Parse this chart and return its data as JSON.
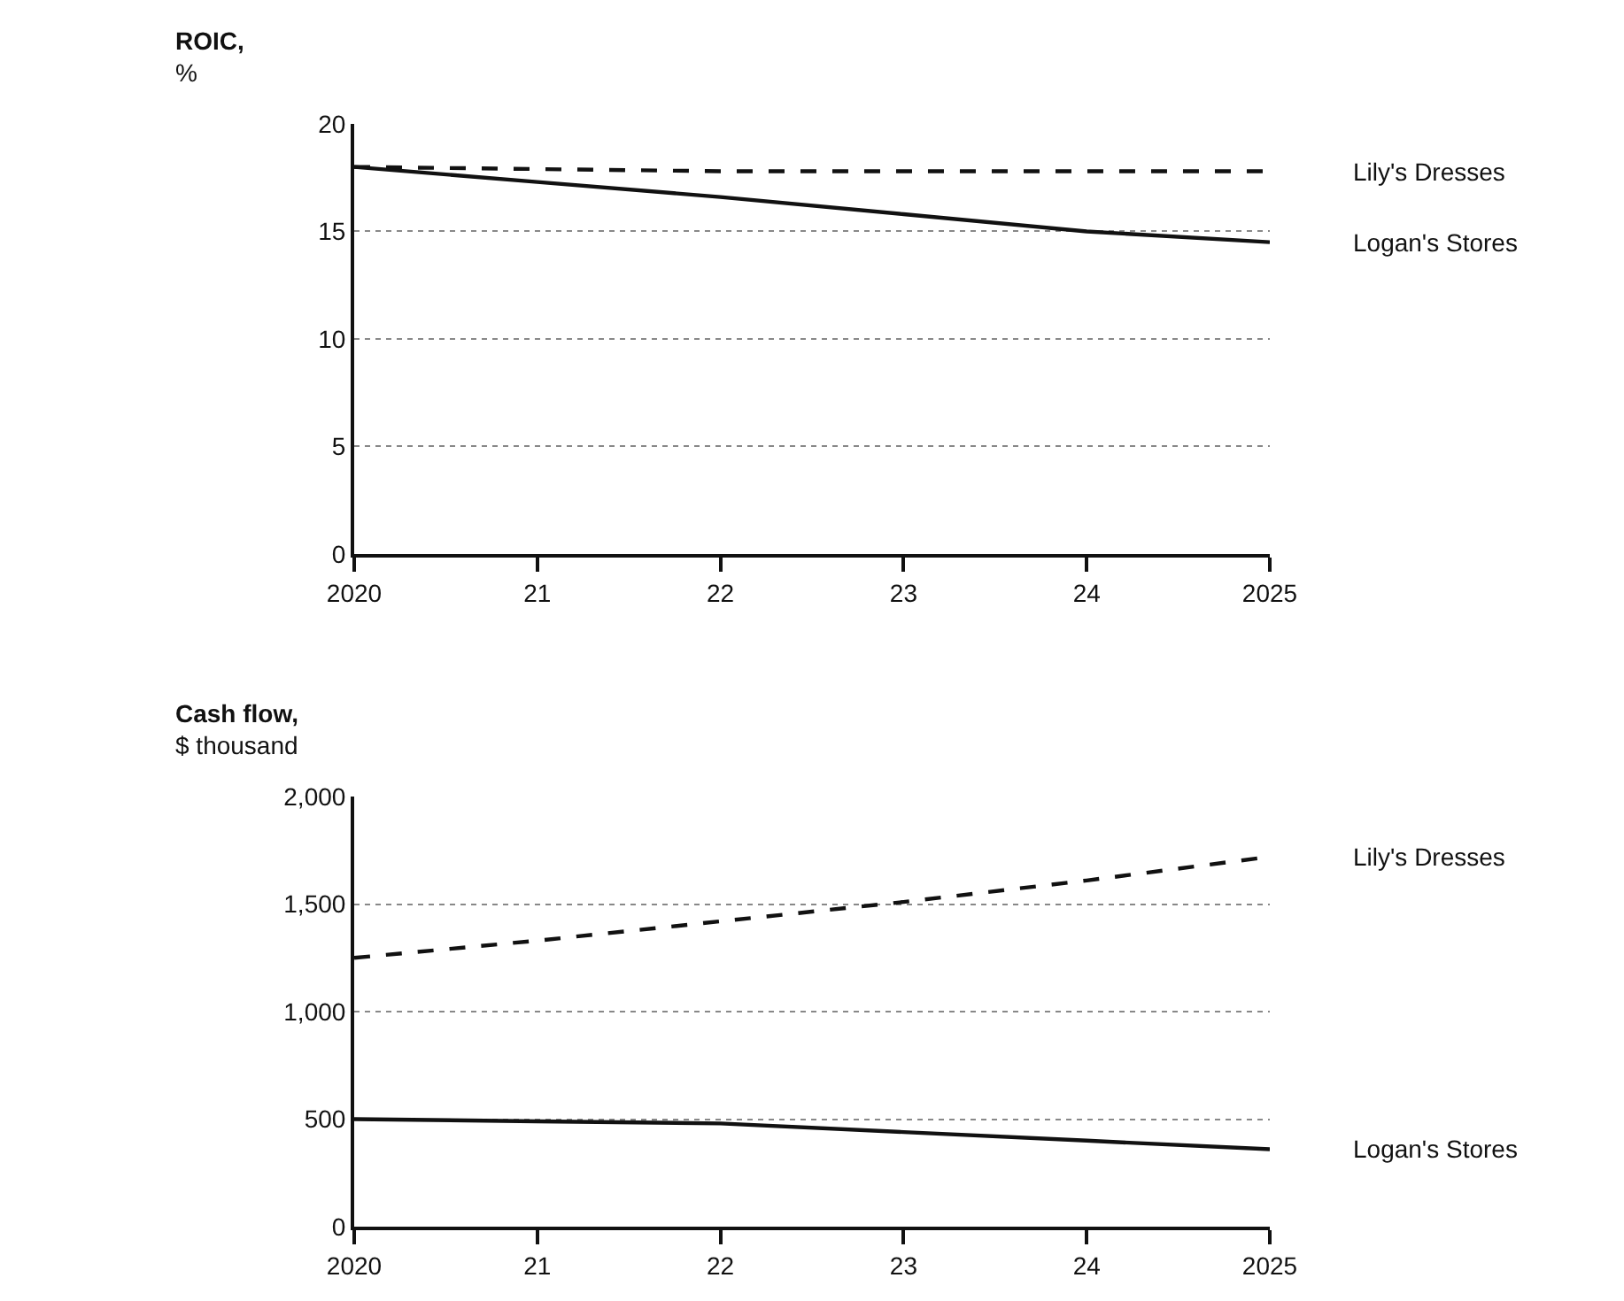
{
  "chart_data": [
    {
      "type": "line",
      "ylabel": "ROIC,\n%",
      "x": [
        2020,
        2021,
        2022,
        2023,
        2024,
        2025
      ],
      "xlim": [
        2020,
        2025
      ],
      "xticks": [
        {
          "value": 2020,
          "label": "2020"
        },
        {
          "value": 2021,
          "label": "21"
        },
        {
          "value": 2022,
          "label": "22"
        },
        {
          "value": 2023,
          "label": "23"
        },
        {
          "value": 2024,
          "label": "24"
        },
        {
          "value": 2025,
          "label": "2025"
        }
      ],
      "ylim": [
        0,
        20
      ],
      "yticks": [
        0,
        5,
        10,
        15,
        20
      ],
      "grid": "y",
      "marker": "none",
      "series": [
        {
          "name": "Lily's Dresses",
          "color": "#111111",
          "line_style": "dashed",
          "values": [
            18,
            17.9,
            17.8,
            17.8,
            17.8,
            17.8
          ]
        },
        {
          "name": "Logan's Stores",
          "color": "#111111",
          "line_style": "solid",
          "values": [
            18,
            17.3,
            16.6,
            15.8,
            15.0,
            14.5
          ]
        }
      ]
    },
    {
      "type": "line",
      "ylabel": "Cash flow,\n$ thousand",
      "x": [
        2020,
        2021,
        2022,
        2023,
        2024,
        2025
      ],
      "xlim": [
        2020,
        2025
      ],
      "xticks": [
        {
          "value": 2020,
          "label": "2020"
        },
        {
          "value": 2021,
          "label": "21"
        },
        {
          "value": 2022,
          "label": "22"
        },
        {
          "value": 2023,
          "label": "23"
        },
        {
          "value": 2024,
          "label": "24"
        },
        {
          "value": 2025,
          "label": "2025"
        }
      ],
      "ylim": [
        0,
        2000
      ],
      "yticks": [
        {
          "value": 0,
          "label": "0"
        },
        {
          "value": 500,
          "label": "500"
        },
        {
          "value": 1000,
          "label": "1,000"
        },
        {
          "value": 1500,
          "label": "1,500"
        },
        {
          "value": 2000,
          "label": "2,000"
        }
      ],
      "grid": "y",
      "marker": "none",
      "series": [
        {
          "name": "Lily's Dresses",
          "color": "#111111",
          "line_style": "dashed",
          "values": [
            1250,
            1330,
            1420,
            1510,
            1610,
            1720
          ]
        },
        {
          "name": "Logan's Stores",
          "color": "#111111",
          "line_style": "solid",
          "values": [
            500,
            490,
            480,
            440,
            400,
            360
          ]
        }
      ]
    }
  ]
}
